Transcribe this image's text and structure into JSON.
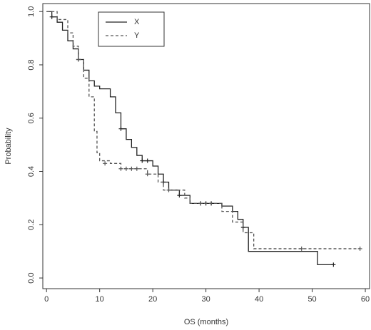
{
  "chart_data": {
    "type": "step",
    "xlabel": "OS (months)",
    "ylabel": "Probability",
    "xlim": [
      -0.7,
      60.8
    ],
    "ylim": [
      -0.04,
      1.03
    ],
    "xticks": [
      0,
      10,
      20,
      30,
      40,
      50,
      60
    ],
    "yticks": [
      {
        "value": 0,
        "label": "0.0"
      },
      0.2,
      0.4,
      0.6,
      0.8,
      {
        "value": 1,
        "label": "1.0"
      }
    ],
    "legend": "top-left",
    "series": [
      {
        "name": "X",
        "color": "#222222",
        "linestyle": "solid",
        "x": [
          0,
          1,
          2,
          3,
          4,
          5,
          6,
          7,
          8,
          9,
          10,
          12,
          13,
          14,
          15,
          16,
          17,
          18,
          20,
          21,
          22,
          23,
          25,
          27,
          33,
          35,
          36,
          37,
          38,
          51,
          54
        ],
        "values": [
          1.0,
          0.98,
          0.96,
          0.93,
          0.89,
          0.86,
          0.82,
          0.78,
          0.74,
          0.72,
          0.71,
          0.68,
          0.62,
          0.56,
          0.52,
          0.49,
          0.46,
          0.44,
          0.42,
          0.39,
          0.36,
          0.33,
          0.31,
          0.28,
          0.27,
          0.25,
          0.22,
          0.19,
          0.1,
          0.05,
          0.05
        ],
        "censor_x": [
          1,
          6,
          14,
          18,
          19,
          22,
          25,
          29,
          30,
          31,
          37,
          54
        ],
        "censor_y": [
          0.98,
          0.82,
          0.56,
          0.44,
          0.44,
          0.36,
          0.31,
          0.28,
          0.28,
          0.28,
          0.19,
          0.05
        ]
      },
      {
        "name": "Y",
        "color": "#555555",
        "linestyle": "dashed",
        "x": [
          0,
          2,
          4,
          5,
          6,
          7,
          8,
          9,
          9.5,
          10,
          12,
          14,
          19,
          21,
          22,
          26,
          27,
          33,
          35,
          37,
          39,
          59
        ],
        "values": [
          1.0,
          0.97,
          0.92,
          0.87,
          0.82,
          0.75,
          0.68,
          0.55,
          0.47,
          0.44,
          0.43,
          0.41,
          0.39,
          0.36,
          0.33,
          0.3,
          0.28,
          0.25,
          0.21,
          0.17,
          0.11,
          0.11
        ],
        "censor_x": [
          6,
          11,
          14,
          15,
          16,
          17,
          19,
          23,
          29,
          48,
          59
        ],
        "censor_y": [
          0.82,
          0.43,
          0.41,
          0.41,
          0.41,
          0.41,
          0.39,
          0.33,
          0.28,
          0.11,
          0.11
        ]
      }
    ]
  }
}
